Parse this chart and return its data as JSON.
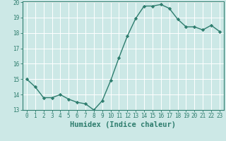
{
  "x": [
    0,
    1,
    2,
    3,
    4,
    5,
    6,
    7,
    8,
    9,
    10,
    11,
    12,
    13,
    14,
    15,
    16,
    17,
    18,
    19,
    20,
    21,
    22,
    23
  ],
  "y": [
    15.0,
    14.5,
    13.8,
    13.8,
    14.0,
    13.7,
    13.5,
    13.4,
    13.0,
    13.6,
    14.9,
    16.4,
    17.8,
    18.95,
    19.75,
    19.75,
    19.85,
    19.6,
    18.9,
    18.4,
    18.4,
    18.2,
    18.5,
    18.1
  ],
  "line_color": "#2e7d6e",
  "marker": "D",
  "marker_size": 2.2,
  "bg_color": "#cce8e6",
  "grid_color": "#ffffff",
  "xlabel": "Humidex (Indice chaleur)",
  "ylim": [
    13,
    20
  ],
  "xlim": [
    -0.5,
    23.5
  ],
  "yticks": [
    13,
    14,
    15,
    16,
    17,
    18,
    19,
    20
  ],
  "xticks": [
    0,
    1,
    2,
    3,
    4,
    5,
    6,
    7,
    8,
    9,
    10,
    11,
    12,
    13,
    14,
    15,
    16,
    17,
    18,
    19,
    20,
    21,
    22,
    23
  ],
  "tick_fontsize": 5.5,
  "xlabel_fontsize": 7.5,
  "tick_color": "#2e7d6e",
  "spine_color": "#2e7d6e",
  "linewidth": 1.0
}
